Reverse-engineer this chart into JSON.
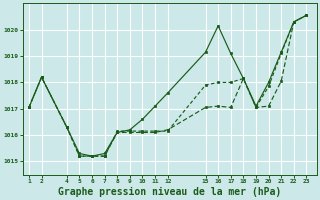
{
  "background_color": "#cce8e8",
  "grid_color": "#ffffff",
  "line_color": "#1a5c1a",
  "marker_color": "#1a5c1a",
  "title": "Graphe pression niveau de la mer (hPa)",
  "title_fontsize": 7.0,
  "title_color": "#1a5c1a",
  "ylim": [
    1014.5,
    1021.0
  ],
  "yticks": [
    1015,
    1016,
    1017,
    1018,
    1019,
    1020
  ],
  "xlim": [
    0.5,
    23.8
  ],
  "series": [
    {
      "x": [
        1,
        2,
        4,
        5,
        6,
        7,
        8,
        9,
        10,
        11,
        12,
        15,
        16,
        17,
        18,
        19,
        20,
        21,
        22,
        23
      ],
      "y": [
        1017.05,
        1018.2,
        1016.3,
        1015.2,
        1015.2,
        1015.2,
        1016.1,
        1016.1,
        1016.1,
        1016.1,
        1016.2,
        1017.05,
        1017.1,
        1017.05,
        1018.15,
        1017.05,
        1017.1,
        1018.05,
        1020.3,
        1020.55
      ],
      "linestyle": "--",
      "dashes": [
        4,
        2
      ]
    },
    {
      "x": [
        1,
        2,
        4,
        5,
        6,
        7,
        8,
        9,
        10,
        11,
        12,
        15,
        16,
        17,
        18,
        19,
        20,
        21,
        22,
        23
      ],
      "y": [
        1017.05,
        1018.2,
        1016.3,
        1015.3,
        1015.2,
        1015.3,
        1016.1,
        1016.2,
        1016.6,
        1017.1,
        1017.6,
        1019.15,
        1020.15,
        1019.1,
        1018.15,
        1017.1,
        1018.0,
        1019.15,
        1020.3,
        1020.55
      ],
      "linestyle": "-",
      "dashes": null
    },
    {
      "x": [
        1,
        2,
        4,
        5,
        6,
        7,
        8,
        9,
        10,
        11,
        12,
        15,
        16,
        17,
        18,
        19,
        20,
        21,
        22,
        23
      ],
      "y": [
        1017.05,
        1018.2,
        1016.3,
        1015.2,
        1015.2,
        1015.2,
        1016.15,
        1016.15,
        1016.15,
        1016.15,
        1016.15,
        1017.9,
        1018.0,
        1018.0,
        1018.15,
        1017.05,
        1017.85,
        1019.1,
        1020.3,
        1020.55
      ],
      "linestyle": "--",
      "dashes": [
        3,
        2
      ]
    }
  ],
  "xtick_positions": [
    1,
    2,
    4,
    5,
    6,
    7,
    8,
    9,
    10,
    11,
    12,
    15,
    16,
    17,
    18,
    19,
    20,
    21,
    22,
    23
  ],
  "xtick_labels": [
    "1",
    "2",
    "4",
    "5",
    "6",
    "7",
    "8",
    "9",
    "10",
    "11",
    "12",
    "15",
    "16",
    "17",
    "18",
    "19",
    "20",
    "21",
    "22",
    "23"
  ]
}
